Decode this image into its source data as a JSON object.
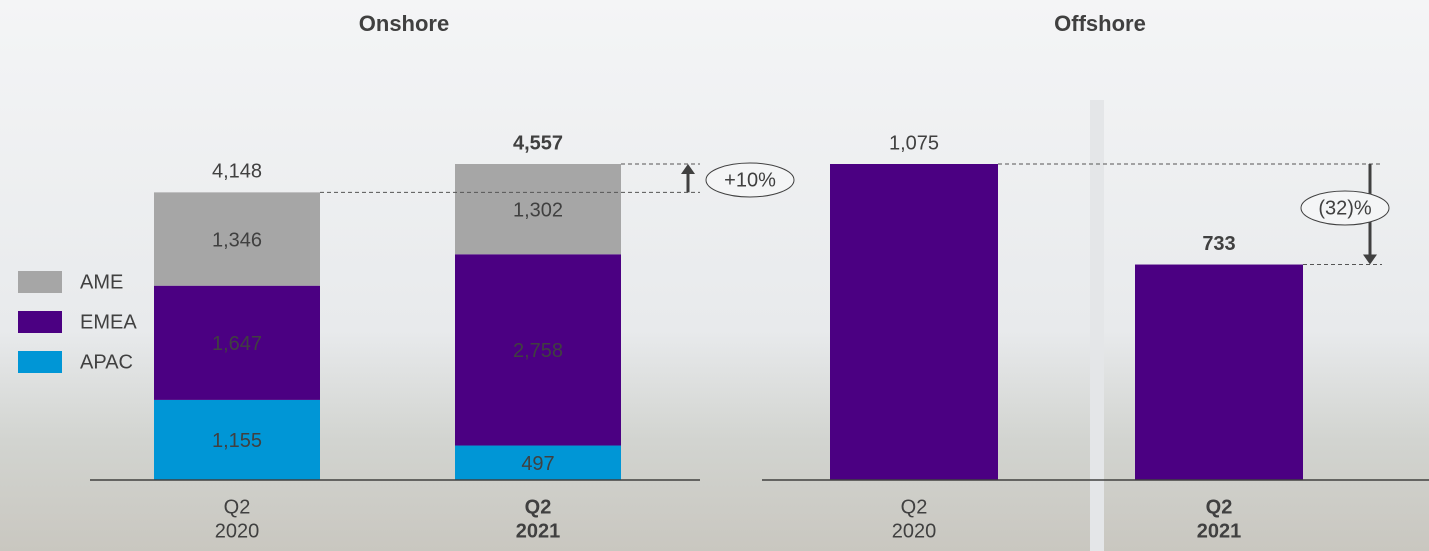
{
  "chart_data": [
    {
      "type": "stacked_bar",
      "title": "Onshore",
      "categories": [
        [
          "Q2",
          "2020"
        ],
        [
          "Q2",
          "2021"
        ]
      ],
      "series": [
        {
          "name": "APAC",
          "color": "#0096d6",
          "values": [
            1155,
            497
          ],
          "value_labels": [
            "1,155",
            "497"
          ]
        },
        {
          "name": "EMEA",
          "color": "#4b0082",
          "values": [
            1647,
            2758
          ],
          "value_labels": [
            "1,647",
            "2,758"
          ]
        },
        {
          "name": "AME",
          "color": "#a6a6a6",
          "values": [
            1346,
            1302
          ],
          "value_labels": [
            "1,346",
            "1,302"
          ]
        }
      ],
      "totals": [
        4148,
        4557
      ],
      "total_labels": [
        "4,148",
        "4,557"
      ],
      "annotation": "+10%",
      "ylim": [
        0,
        4557
      ],
      "legend": "left"
    },
    {
      "type": "bar",
      "title": "Offshore",
      "categories": [
        [
          "Q2",
          "2020"
        ],
        [
          "Q2",
          "2021"
        ]
      ],
      "values": [
        1075,
        733
      ],
      "value_labels": [
        "1,075",
        "733"
      ],
      "color": "#4b0082",
      "annotation": "(32)%",
      "ylim": [
        0,
        1075
      ]
    }
  ]
}
